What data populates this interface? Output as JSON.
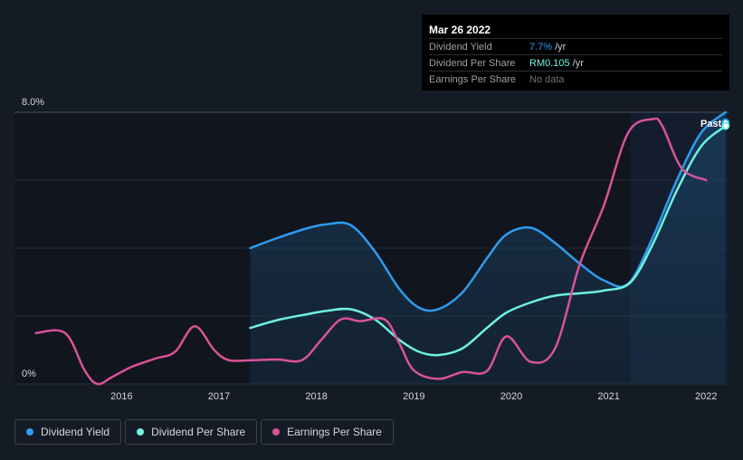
{
  "tooltip": {
    "date": "Mar 26 2022",
    "rows": [
      {
        "label": "Dividend Yield",
        "value": "7.7%",
        "unit": " /yr",
        "color": "#2e9cf0"
      },
      {
        "label": "Dividend Per Share",
        "value": "RM0.105",
        "unit": " /yr",
        "color": "#6ff0e0"
      },
      {
        "label": "Earnings Per Share",
        "value": "No data",
        "unit": "",
        "color": "#6b7078"
      }
    ]
  },
  "past_label": "Past",
  "legend": [
    {
      "label": "Dividend Yield",
      "color": "#2e9cf0"
    },
    {
      "label": "Dividend Per Share",
      "color": "#6ff0e0"
    },
    {
      "label": "Earnings Per Share",
      "color": "#d9529a"
    }
  ],
  "chart_data": {
    "type": "line",
    "y_axis": {
      "min": 0,
      "max": 8.0,
      "top_label": "8.0%",
      "bottom_label": "0%"
    },
    "x_ticks": [
      {
        "label": "2016",
        "x": 2016
      },
      {
        "label": "2017",
        "x": 2017
      },
      {
        "label": "2018",
        "x": 2018
      },
      {
        "label": "2019",
        "x": 2019
      },
      {
        "label": "2020",
        "x": 2020
      },
      {
        "label": "2021",
        "x": 2021
      },
      {
        "label": "2022",
        "x": 2022
      }
    ],
    "x_range": [
      2014.9,
      2022.23
    ],
    "past_start": 2021.22,
    "series": [
      {
        "name": "Dividend Yield",
        "color": "#2e9cf0",
        "fill": true,
        "points": [
          [
            2017.32,
            4.0
          ],
          [
            2017.6,
            4.3
          ],
          [
            2017.9,
            4.58
          ],
          [
            2018.1,
            4.7
          ],
          [
            2018.35,
            4.68
          ],
          [
            2018.6,
            3.9
          ],
          [
            2018.85,
            2.8
          ],
          [
            2019.05,
            2.25
          ],
          [
            2019.25,
            2.2
          ],
          [
            2019.5,
            2.7
          ],
          [
            2019.75,
            3.7
          ],
          [
            2019.95,
            4.4
          ],
          [
            2020.2,
            4.6
          ],
          [
            2020.45,
            4.15
          ],
          [
            2020.7,
            3.55
          ],
          [
            2020.95,
            3.05
          ],
          [
            2021.2,
            2.95
          ],
          [
            2021.45,
            4.3
          ],
          [
            2021.7,
            6.0
          ],
          [
            2021.95,
            7.4
          ],
          [
            2022.2,
            8.0
          ]
        ]
      },
      {
        "name": "Dividend Per Share",
        "color": "#6ff0e0",
        "fill": false,
        "points": [
          [
            2017.32,
            1.65
          ],
          [
            2017.6,
            1.88
          ],
          [
            2017.9,
            2.05
          ],
          [
            2018.1,
            2.15
          ],
          [
            2018.35,
            2.2
          ],
          [
            2018.6,
            1.9
          ],
          [
            2018.85,
            1.3
          ],
          [
            2019.05,
            0.95
          ],
          [
            2019.25,
            0.85
          ],
          [
            2019.5,
            1.05
          ],
          [
            2019.75,
            1.65
          ],
          [
            2019.95,
            2.1
          ],
          [
            2020.2,
            2.4
          ],
          [
            2020.45,
            2.6
          ],
          [
            2020.75,
            2.68
          ],
          [
            2020.95,
            2.75
          ],
          [
            2021.22,
            2.98
          ],
          [
            2021.45,
            4.1
          ],
          [
            2021.7,
            5.7
          ],
          [
            2021.95,
            7.0
          ],
          [
            2022.2,
            7.6
          ]
        ]
      },
      {
        "name": "Earnings Per Share",
        "color": "#d9529a",
        "fill": false,
        "points": [
          [
            2015.12,
            1.5
          ],
          [
            2015.42,
            1.5
          ],
          [
            2015.62,
            0.4
          ],
          [
            2015.75,
            0.0
          ],
          [
            2015.9,
            0.2
          ],
          [
            2016.1,
            0.5
          ],
          [
            2016.35,
            0.75
          ],
          [
            2016.55,
            0.95
          ],
          [
            2016.75,
            1.7
          ],
          [
            2016.95,
            1.0
          ],
          [
            2017.1,
            0.7
          ],
          [
            2017.35,
            0.7
          ],
          [
            2017.6,
            0.72
          ],
          [
            2017.85,
            0.7
          ],
          [
            2018.05,
            1.3
          ],
          [
            2018.25,
            1.9
          ],
          [
            2018.45,
            1.85
          ],
          [
            2018.7,
            1.9
          ],
          [
            2018.85,
            1.2
          ],
          [
            2019.0,
            0.4
          ],
          [
            2019.25,
            0.15
          ],
          [
            2019.5,
            0.35
          ],
          [
            2019.75,
            0.38
          ],
          [
            2019.95,
            1.4
          ],
          [
            2020.2,
            0.65
          ],
          [
            2020.45,
            1.05
          ],
          [
            2020.7,
            3.5
          ],
          [
            2020.95,
            5.25
          ],
          [
            2021.2,
            7.4
          ],
          [
            2021.45,
            7.8
          ],
          [
            2021.55,
            7.6
          ],
          [
            2021.75,
            6.35
          ],
          [
            2022.0,
            6.0
          ]
        ]
      }
    ]
  }
}
